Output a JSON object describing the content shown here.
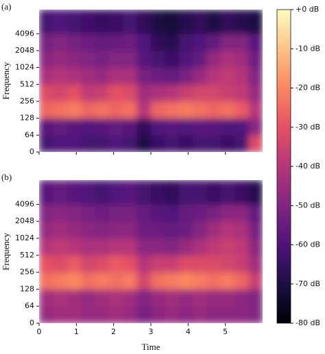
{
  "chart_data": [
    {
      "type": "spectrogram",
      "label": "(a)",
      "ylabel": "Frequency",
      "colormap": "magma",
      "vlim": [
        -80,
        0
      ],
      "xlim": [
        0,
        6
      ],
      "xticks": [
        0,
        1,
        2,
        3,
        4,
        5
      ],
      "xticklabels": false,
      "ylim": [
        0,
        11025
      ],
      "yscale": "symlog",
      "linthresh": 64,
      "yticks": [
        0,
        64,
        128,
        256,
        512,
        1024,
        2048,
        4096
      ],
      "x": [
        0,
        0.375,
        0.75,
        1.125,
        1.5,
        1.875,
        2.25,
        2.625,
        3,
        3.375,
        3.75,
        4.125,
        4.5,
        4.875,
        5.25,
        5.625,
        6
      ],
      "y": [
        0,
        64,
        128,
        256,
        512,
        1024,
        2048,
        4096,
        11025
      ],
      "values": [
        [
          -62,
          -60,
          -60,
          -62,
          -62,
          -60,
          -62,
          -70,
          -64,
          -62,
          -64,
          -62,
          -62,
          -64,
          -62,
          -32
        ],
        [
          -58,
          -56,
          -58,
          -60,
          -58,
          -56,
          -58,
          -66,
          -60,
          -58,
          -60,
          -58,
          -58,
          -60,
          -60,
          -48
        ],
        [
          -26,
          -24,
          -22,
          -26,
          -24,
          -26,
          -24,
          -40,
          -26,
          -24,
          -22,
          -24,
          -26,
          -24,
          -28,
          -40
        ],
        [
          -32,
          -34,
          -30,
          -38,
          -36,
          -30,
          -32,
          -44,
          -42,
          -40,
          -36,
          -34,
          -34,
          -36,
          -38,
          -46
        ],
        [
          -42,
          -40,
          -42,
          -44,
          -46,
          -42,
          -42,
          -52,
          -54,
          -56,
          -52,
          -46,
          -40,
          -38,
          -40,
          -50
        ],
        [
          -48,
          -46,
          -48,
          -50,
          -52,
          -50,
          -50,
          -58,
          -62,
          -64,
          -60,
          -56,
          -46,
          -42,
          -44,
          -54
        ],
        [
          -52,
          -50,
          -52,
          -54,
          -56,
          -55,
          -54,
          -60,
          -66,
          -68,
          -62,
          -60,
          -56,
          -50,
          -50,
          -58
        ],
        [
          -62,
          -60,
          -62,
          -63,
          -65,
          -64,
          -62,
          -66,
          -70,
          -72,
          -68,
          -66,
          -70,
          -66,
          -68,
          -70
        ]
      ]
    },
    {
      "type": "spectrogram",
      "label": "(b)",
      "ylabel": "Frequency",
      "xlabel": "Time",
      "colormap": "magma",
      "vlim": [
        -80,
        0
      ],
      "xlim": [
        0,
        6
      ],
      "xticks": [
        0,
        1,
        2,
        3,
        4,
        5
      ],
      "xticklabels": true,
      "ylim": [
        0,
        11025
      ],
      "yscale": "symlog",
      "linthresh": 64,
      "yticks": [
        0,
        64,
        128,
        256,
        512,
        1024,
        2048,
        4096
      ],
      "x": [
        0,
        0.375,
        0.75,
        1.125,
        1.5,
        1.875,
        2.25,
        2.625,
        3,
        3.375,
        3.75,
        4.125,
        4.5,
        4.875,
        5.25,
        5.625,
        6
      ],
      "y": [
        0,
        64,
        128,
        256,
        512,
        1024,
        2048,
        4096,
        11025
      ],
      "values": [
        [
          -46,
          -44,
          -44,
          -46,
          -46,
          -44,
          -46,
          -52,
          -48,
          -46,
          -48,
          -46,
          -48,
          -48,
          -48,
          -50
        ],
        [
          -44,
          -42,
          -44,
          -46,
          -44,
          -42,
          -44,
          -50,
          -46,
          -44,
          -46,
          -44,
          -46,
          -46,
          -48,
          -50
        ],
        [
          -24,
          -22,
          -20,
          -24,
          -22,
          -24,
          -22,
          -34,
          -24,
          -22,
          -20,
          -22,
          -24,
          -22,
          -26,
          -36
        ],
        [
          -30,
          -32,
          -28,
          -34,
          -32,
          -28,
          -30,
          -40,
          -36,
          -36,
          -32,
          -32,
          -32,
          -34,
          -36,
          -44
        ],
        [
          -40,
          -38,
          -40,
          -42,
          -42,
          -40,
          -40,
          -48,
          -48,
          -50,
          -46,
          -42,
          -38,
          -36,
          -38,
          -48
        ],
        [
          -46,
          -44,
          -46,
          -48,
          -50,
          -48,
          -48,
          -54,
          -54,
          -56,
          -54,
          -50,
          -44,
          -40,
          -42,
          -52
        ],
        [
          -50,
          -48,
          -50,
          -52,
          -54,
          -52,
          -52,
          -56,
          -58,
          -60,
          -56,
          -54,
          -52,
          -48,
          -48,
          -56
        ],
        [
          -58,
          -56,
          -58,
          -60,
          -62,
          -60,
          -58,
          -62,
          -64,
          -66,
          -62,
          -62,
          -64,
          -62,
          -64,
          -68
        ]
      ]
    },
    {
      "type": "colorbar",
      "colormap": "magma",
      "ylim": [
        -80,
        0
      ],
      "yticks": [
        {
          "value": 0,
          "label": "+0 dB"
        },
        {
          "value": -10,
          "label": "-10 dB"
        },
        {
          "value": -20,
          "label": "-20 dB"
        },
        {
          "value": -30,
          "label": "-30 dB"
        },
        {
          "value": -40,
          "label": "-40 dB"
        },
        {
          "value": -50,
          "label": "-50 dB"
        },
        {
          "value": -60,
          "label": "-60 dB"
        },
        {
          "value": -70,
          "label": "-70 dB"
        },
        {
          "value": -80,
          "label": "-80 dB"
        }
      ]
    }
  ]
}
